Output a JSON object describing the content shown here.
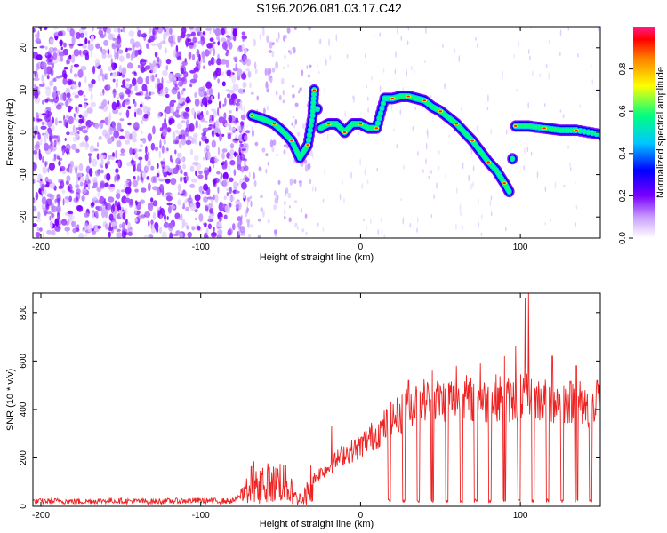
{
  "title": "S196.2026.081.03.17.C42",
  "chart_data": [
    {
      "type": "heatmap",
      "xlabel": "Height of straight line (km)",
      "ylabel": "Frequency (Hz)",
      "xlim": [
        -205,
        150
      ],
      "ylim": [
        -25,
        25
      ],
      "xticks": [
        -200,
        -100,
        0,
        100
      ],
      "yticks": [
        -20,
        -10,
        0,
        10,
        20
      ],
      "noise_region_x": [
        -205,
        -70
      ],
      "ridge": [
        {
          "x": -68,
          "y": 4
        },
        {
          "x": -60,
          "y": 3
        },
        {
          "x": -54,
          "y": 2
        },
        {
          "x": -48,
          "y": 0
        },
        {
          "x": -43,
          "y": -2
        },
        {
          "x": -38,
          "y": -6
        },
        {
          "x": -33,
          "y": -3
        },
        {
          "x": -30,
          "y": 4
        },
        {
          "x": -29,
          "y": 10
        },
        {
          "x": -25,
          "y": 1
        },
        {
          "x": -20,
          "y": 2
        },
        {
          "x": -15,
          "y": 2
        },
        {
          "x": -10,
          "y": 0
        },
        {
          "x": -5,
          "y": 2
        },
        {
          "x": 0,
          "y": 2
        },
        {
          "x": 5,
          "y": 1
        },
        {
          "x": 10,
          "y": 1
        },
        {
          "x": 15,
          "y": 8
        },
        {
          "x": 20,
          "y": 8
        },
        {
          "x": 25,
          "y": 8.5
        },
        {
          "x": 30,
          "y": 8.5
        },
        {
          "x": 35,
          "y": 8
        },
        {
          "x": 40,
          "y": 7.5
        },
        {
          "x": 45,
          "y": 6
        },
        {
          "x": 50,
          "y": 5
        },
        {
          "x": 55,
          "y": 3.5
        },
        {
          "x": 60,
          "y": 2
        },
        {
          "x": 65,
          "y": 0
        },
        {
          "x": 70,
          "y": -2
        },
        {
          "x": 75,
          "y": -4.5
        },
        {
          "x": 80,
          "y": -7
        },
        {
          "x": 85,
          "y": -9
        },
        {
          "x": 90,
          "y": -12
        },
        {
          "x": 93,
          "y": -14
        },
        {
          "x": 97,
          "y": 1.5
        },
        {
          "x": 105,
          "y": 1.5
        },
        {
          "x": 115,
          "y": 1
        },
        {
          "x": 125,
          "y": 0.5
        },
        {
          "x": 135,
          "y": 0.5
        },
        {
          "x": 150,
          "y": -0.5
        }
      ],
      "colorbar": {
        "label": "Normalized spectral amplitude",
        "ticks": [
          "0.0",
          "0.2",
          "0.4",
          "0.6",
          "0.8"
        ],
        "colors": [
          "#ffffff",
          "#c89cff",
          "#7a00ff",
          "#0000ff",
          "#00c8ff",
          "#00ff80",
          "#ffff00",
          "#ff8000",
          "#ff0000",
          "#ff1a8c"
        ]
      }
    },
    {
      "type": "line",
      "xlabel": "Height of straight line (km)",
      "ylabel": "SNR (10 * v/v)",
      "xlim": [
        -205,
        150
      ],
      "ylim": [
        0,
        880
      ],
      "xticks": [
        -200,
        -100,
        0,
        100
      ],
      "yticks": [
        0,
        200,
        400,
        600,
        800
      ],
      "color": "#ee2222",
      "series": [
        {
          "name": "SNR",
          "x": [
            -205,
            -190,
            -175,
            -160,
            -145,
            -130,
            -115,
            -100,
            -90,
            -80,
            -75,
            -70,
            -65,
            -60,
            -55,
            -50,
            -45,
            -40,
            -35,
            -30,
            -25,
            -20,
            -15,
            -10,
            -5,
            0,
            5,
            10,
            15,
            20,
            25,
            30,
            35,
            40,
            45,
            50,
            55,
            60,
            65,
            70,
            75,
            80,
            85,
            90,
            95,
            100,
            105,
            110,
            115,
            120,
            125,
            130,
            135,
            140,
            145,
            150
          ],
          "values": [
            20,
            22,
            20,
            24,
            22,
            20,
            22,
            24,
            22,
            22,
            40,
            100,
            110,
            100,
            90,
            110,
            80,
            30,
            40,
            110,
            140,
            160,
            190,
            220,
            230,
            250,
            280,
            300,
            330,
            360,
            380,
            410,
            430,
            440,
            440,
            440,
            445,
            450,
            450,
            440,
            440,
            430,
            450,
            440,
            440,
            450,
            450,
            440,
            440,
            430,
            440,
            430,
            440,
            420,
            400,
            420
          ]
        }
      ],
      "dips_x": [
        18,
        27,
        36,
        45,
        54,
        63,
        72,
        81,
        90,
        99,
        108,
        117,
        126,
        135,
        144
      ],
      "spikes": [
        {
          "x": -18,
          "value": 330
        },
        {
          "x": 30,
          "value": 520
        },
        {
          "x": 45,
          "value": 560
        },
        {
          "x": 60,
          "value": 580
        },
        {
          "x": 75,
          "value": 590
        },
        {
          "x": 90,
          "value": 620
        },
        {
          "x": 97,
          "value": 660
        },
        {
          "x": 103,
          "value": 860
        },
        {
          "x": 105,
          "value": 880
        },
        {
          "x": 120,
          "value": 620
        },
        {
          "x": 135,
          "value": 580
        },
        {
          "x": 148,
          "value": 520
        }
      ]
    }
  ]
}
